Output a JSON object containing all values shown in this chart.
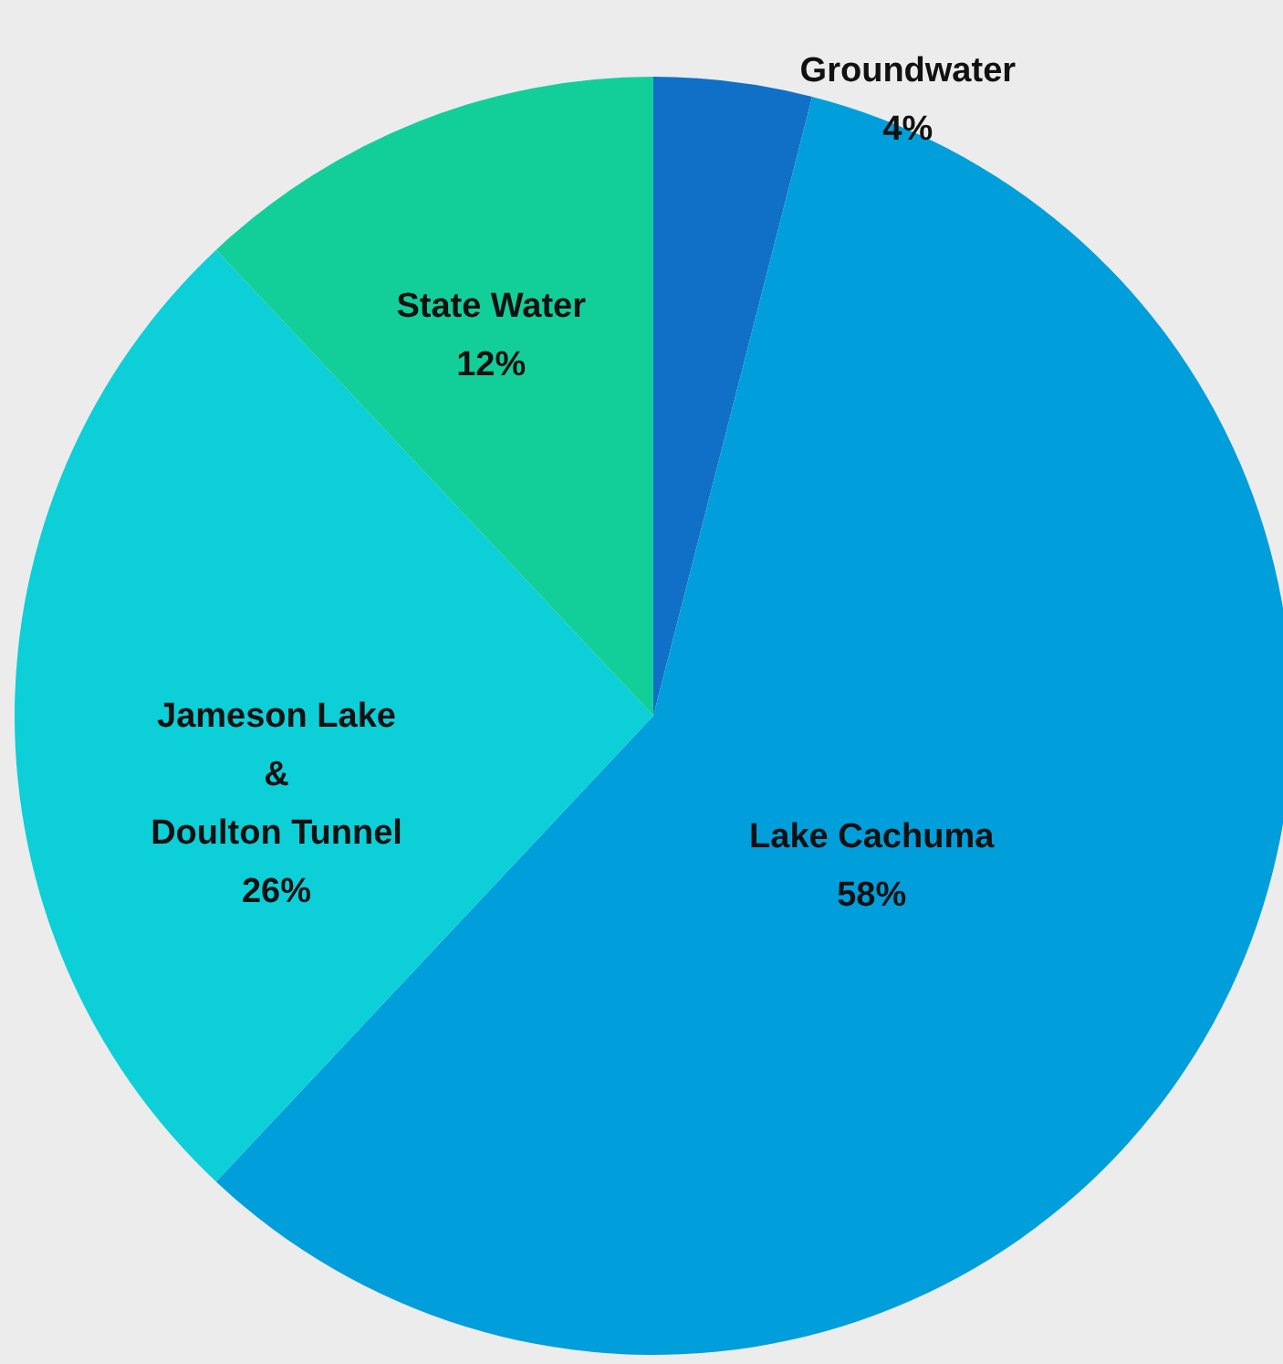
{
  "chart_data": {
    "type": "pie",
    "categories": [
      "Groundwater",
      "Lake Cachuma",
      "Jameson Lake\n&\nDoulton Tunnel",
      "State Water"
    ],
    "values": [
      4,
      58,
      26,
      12
    ],
    "value_labels": [
      "4%",
      "58%",
      "26%",
      "12%"
    ],
    "colors": [
      "#1070c8",
      "#009fdb",
      "#0ccfd8",
      "#12cf9a"
    ]
  }
}
